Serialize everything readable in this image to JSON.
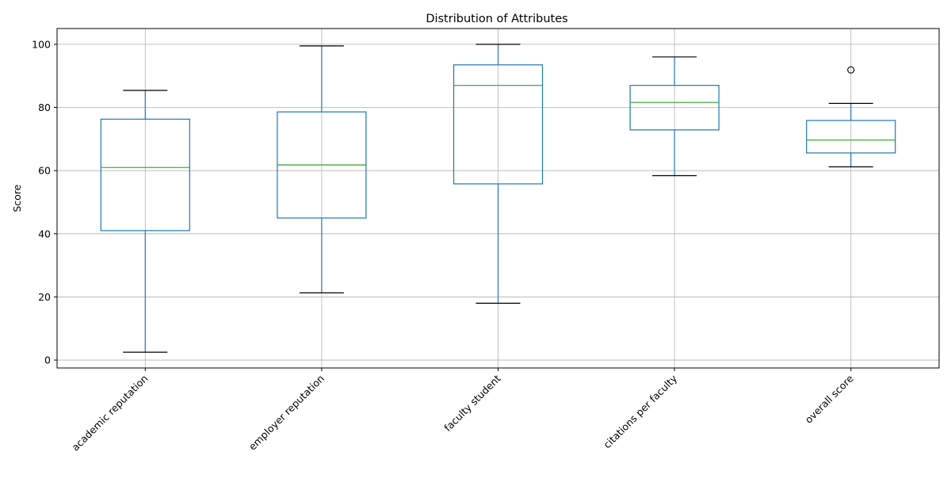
{
  "chart_data": {
    "type": "boxplot",
    "title": "Distribution of Attributes",
    "xlabel": "",
    "ylabel": "Score",
    "ylim": [
      -2.5,
      105
    ],
    "yticks": [
      0,
      20,
      40,
      60,
      80,
      100
    ],
    "grid": true,
    "categories": [
      "academic reputation",
      "employer reputation",
      "faculty student",
      "citations per faculty",
      "overall score"
    ],
    "boxes": [
      {
        "whisker_low": 2.5,
        "q1": 41.0,
        "median": 61.0,
        "q3": 76.3,
        "whisker_high": 85.4,
        "outliers": []
      },
      {
        "whisker_low": 21.3,
        "q1": 45.0,
        "median": 61.8,
        "q3": 78.6,
        "whisker_high": 99.5,
        "outliers": []
      },
      {
        "whisker_low": 18.0,
        "q1": 55.8,
        "median": 87.0,
        "q3": 93.5,
        "whisker_high": 100.0,
        "outliers": []
      },
      {
        "whisker_low": 58.4,
        "q1": 72.9,
        "median": 81.6,
        "q3": 87.0,
        "whisker_high": 96.0,
        "outliers": []
      },
      {
        "whisker_low": 61.2,
        "q1": 65.6,
        "median": 69.7,
        "q3": 75.9,
        "whisker_high": 81.3,
        "outliers": [
          91.9
        ]
      }
    ],
    "colors": {
      "box": "#1f77b4",
      "median": "#2ca02c",
      "caps": "#000000",
      "outlier": "#000000",
      "grid": "#b0b0b0"
    }
  }
}
